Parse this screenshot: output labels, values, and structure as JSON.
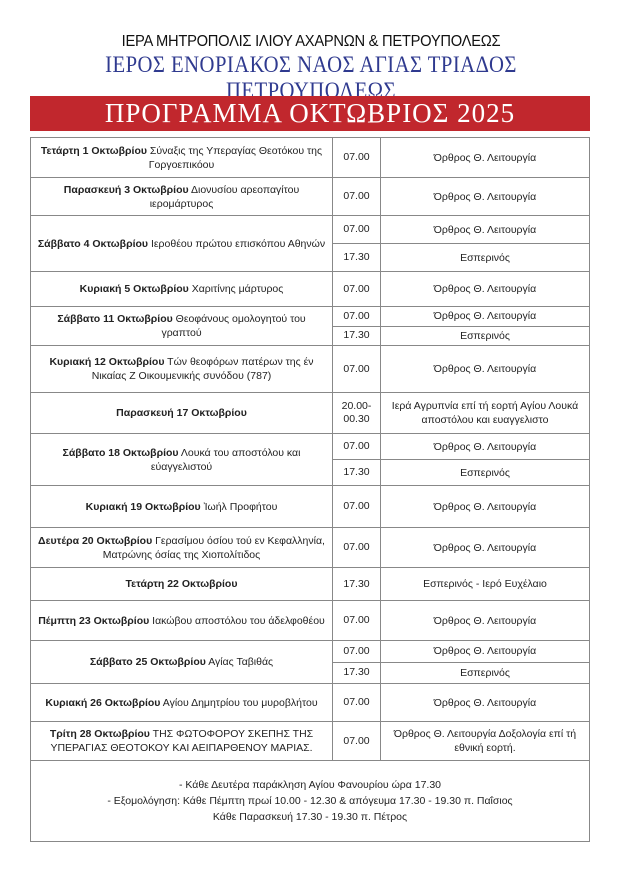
{
  "header": {
    "metropolis": "ΙΕΡΑ ΜΗΤΡΟΠΟΛΙΣ ΙΛΙΟΥ ΑΧΑΡΝΩΝ & ΠΕΤΡΟΥΠΟΛΕΩΣ",
    "church": "ΙΕΡΟΣ ΕΝΟΡΙΑΚΟΣ ΝΑΟΣ ΑΓΙΑΣ ΤΡΙΑΔΟΣ ΠΕΤΡΟΥΠΟΛΕΩΣ",
    "title": "ΠΡΟΓΡΑΜΜΑ ΟΚΤΩΒΡΙΟΣ 2025"
  },
  "colors": {
    "banner": "#c1272d",
    "church_text": "#2f3a8f"
  },
  "schedule": [
    {
      "day": "Τετάρτη 1 Οκτωβρίου",
      "feast": "Σύναξις της Υπεραγίας Θεοτόκου της Γοργοεπικόου",
      "services": [
        {
          "time": "07.00",
          "desc": "Όρθρος Θ.  Λειτουργία"
        }
      ]
    },
    {
      "day": "Παρασκευή 3 Οκτωβρίου",
      "feast": "Διονυσίου αρεοπαγίτου ιερομάρτυρος",
      "services": [
        {
          "time": "07.00",
          "desc": "Όρθρος Θ.  Λειτουργία"
        }
      ]
    },
    {
      "day": "Σάββατο 4 Οκτωβρίου",
      "feast": "Ιεροθέου πρώτου επισκόπου Αθηνών",
      "services": [
        {
          "time": "07.00",
          "desc": "Όρθρος Θ.  Λειτουργία"
        },
        {
          "time": "17.30",
          "desc": "Εσπερινός"
        }
      ]
    },
    {
      "day": "Κυριακή 5 Οκτωβρίου",
      "feast": "Χαριτίνης μάρτυρος",
      "services": [
        {
          "time": "07.00",
          "desc": "Όρθρος Θ.  Λειτουργία"
        }
      ]
    },
    {
      "day": "Σάββατο 11 Οκτωβρίου",
      "feast": "Θεοφάνους ομολογητού του γραπτού",
      "services": [
        {
          "time": "07.00",
          "desc": "Όρθρος Θ.  Λειτουργία"
        },
        {
          "time": "17.30",
          "desc": "Εσπερινός"
        }
      ]
    },
    {
      "day": "Κυριακή 12 Οκτωβρίου",
      "feast": "Τών θεοφόρων πατέρων της έν Νικαίας Ζ Οικουμενικής συνόδου (787)",
      "services": [
        {
          "time": "07.00",
          "desc": "Όρθρος Θ.  Λειτουργία"
        }
      ]
    },
    {
      "day": "Παρασκευή 17 Οκτωβρίου",
      "feast": "",
      "services": [
        {
          "time": "20.00-00.30",
          "desc": "Ιερά Αγρυπνία επί τή εορτή Αγίου Λουκά αποστόλου και ευαγγελιστο"
        }
      ]
    },
    {
      "day": "Σάββατο 18 Οκτωβρίου",
      "feast": "Λουκά του αποστόλου και εύαγγελιστού",
      "services": [
        {
          "time": "07.00",
          "desc": "Όρθρος Θ.  Λειτουργία"
        },
        {
          "time": "17.30",
          "desc": "Εσπερινός"
        }
      ]
    },
    {
      "day": "Κυριακή 19 Οκτωβρίου",
      "feast": "Ἰωήλ Προφήτου",
      "services": [
        {
          "time": "07.00",
          "desc": "Όρθρος Θ.  Λειτουργία"
        }
      ]
    },
    {
      "day": "Δευτέρα 20 Οκτωβρίου",
      "feast": "Γερασίμου όσίου τού εν Κεφαλληνία,  Ματρώνης όσίας της Χιοπολίτιδος",
      "services": [
        {
          "time": "07.00",
          "desc": "Όρθρος Θ.  Λειτουργία"
        }
      ]
    },
    {
      "day": "Τετάρτη 22 Οκτωβρίου",
      "feast": "",
      "services": [
        {
          "time": "17.30",
          "desc": "Εσπερινός  - Ιερό Ευχέλαιο"
        }
      ]
    },
    {
      "day": "Πέμπτη 23 Οκτωβρίου",
      "feast": "Ιακώβου αποστόλου του άδελφοθέου",
      "services": [
        {
          "time": "07.00",
          "desc": "Όρθρος Θ.  Λειτουργία"
        }
      ]
    },
    {
      "day": "Σάββατο 25 Οκτωβρίου",
      "feast": "Αγίας Ταβιθάς",
      "services": [
        {
          "time": "07.00",
          "desc": "Όρθρος Θ.  Λειτουργία"
        },
        {
          "time": "17.30",
          "desc": "Εσπερινός"
        }
      ]
    },
    {
      "day": "Κυριακή 26 Οκτωβρίου",
      "feast": "Αγίου Δημητρίου του μυροβλήτου",
      "services": [
        {
          "time": "07.00",
          "desc": "Όρθρος Θ.  Λειτουργία"
        }
      ]
    },
    {
      "day": "Τρίτη 28 Οκτωβρίου",
      "feast": "ΤΗΣ ΦΩΤΟΦΟΡΟΥ ΣΚΕΠΗΣ ΤΗΣ ΥΠΕΡΑΓΙΑΣ ΘΕΟΤΟΚΟΥ ΚΑΙ ΑΕΙΠΑΡΘΕΝΟΥ ΜΑΡΙΑΣ.",
      "services": [
        {
          "time": "07.00",
          "desc": "Όρθρος Θ.  Λειτουργία Δοξολογία επί τή εθνική εορτή."
        }
      ]
    }
  ],
  "notes": [
    "- Κάθε Δευτέρα παράκληση Αγίου Φανουρίου ώρα 17.30",
    "- Εξομολόγηση: Κάθε Πέμπτη πρωί 10.00  - 12.30 & απόγευμα 17.30  - 19.30  π. Παΐσιος",
    "Κάθε Παρασκευή 17.30 - 19.30 π. Πέτρος"
  ]
}
